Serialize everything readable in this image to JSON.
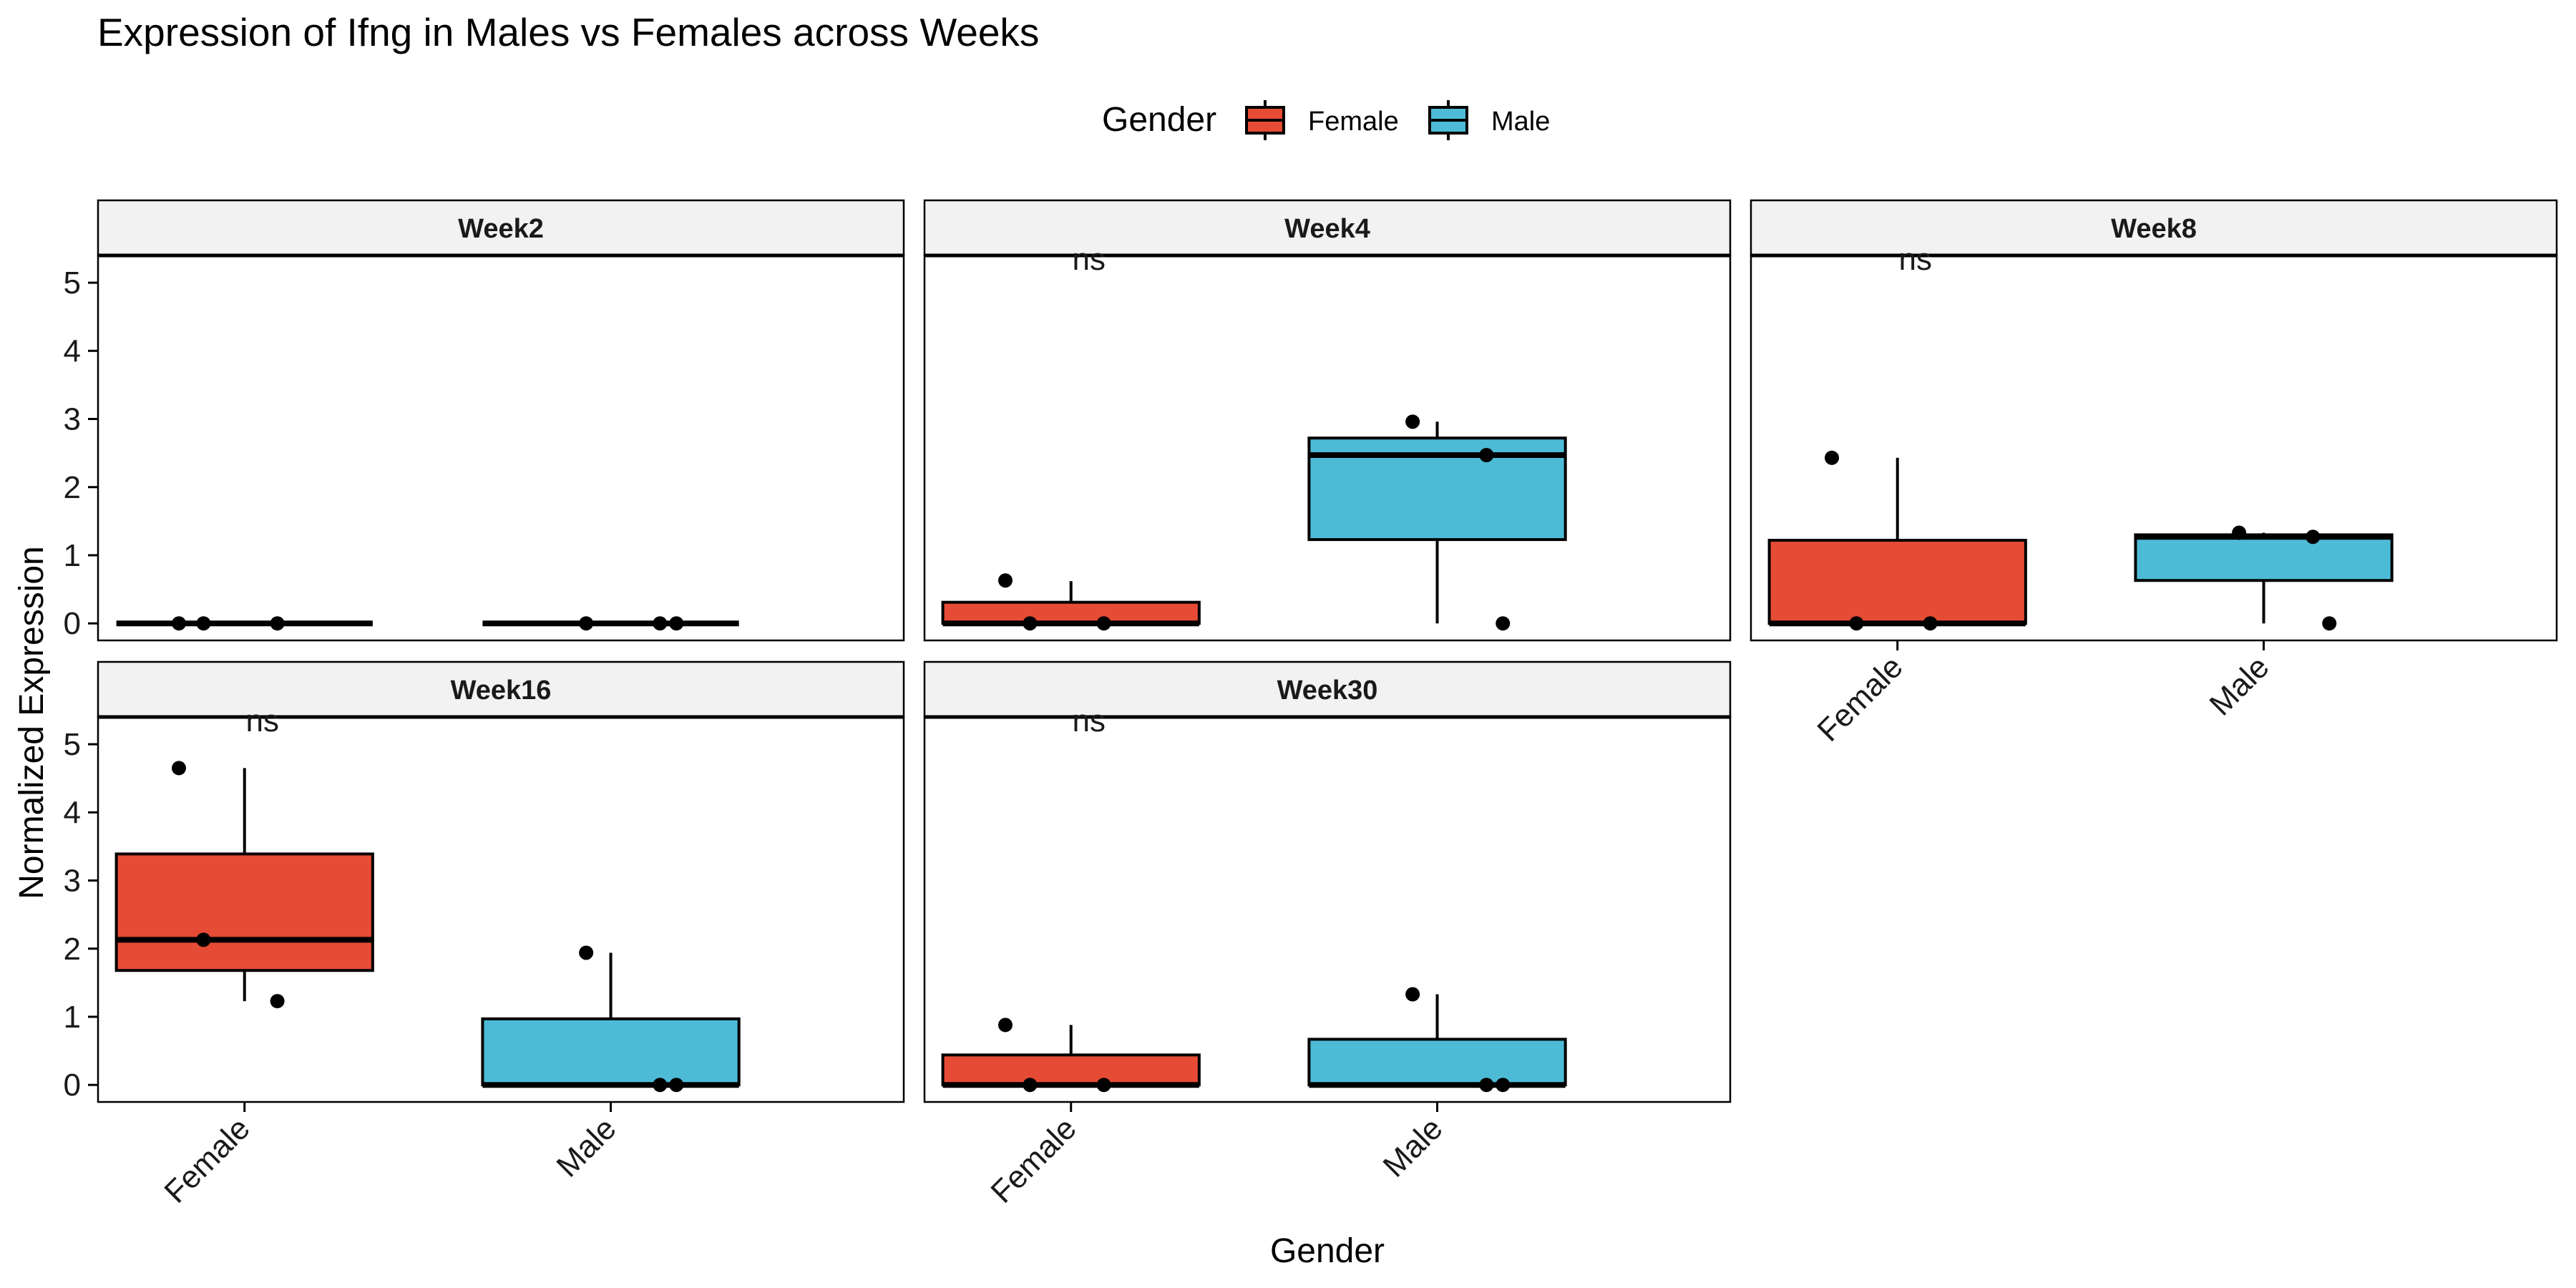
{
  "chart_data": {
    "type": "boxplot",
    "title": "Expression of Ifng in Males vs Females across Weeks",
    "xlabel": "Gender",
    "ylabel": "Normalized Expression",
    "categories": [
      "Female",
      "Male"
    ],
    "ylim": [
      -0.25,
      5.4
    ],
    "yticks": [
      0,
      1,
      2,
      3,
      4,
      5
    ],
    "grid": false,
    "legend": {
      "title": "Gender",
      "placement": "top",
      "entries": [
        {
          "label": "Female",
          "color": "#E64B35"
        },
        {
          "label": "Male",
          "color": "#4DBBD5"
        }
      ]
    },
    "facets": [
      {
        "label": "Week2",
        "annotation": "",
        "groups": [
          {
            "category": "Female",
            "min": 0,
            "q1": 0,
            "median": 0,
            "q3": 0,
            "max": 0,
            "points": [
              0,
              0,
              0
            ]
          },
          {
            "category": "Male",
            "min": 0,
            "q1": 0,
            "median": 0,
            "q3": 0,
            "max": 0,
            "points": [
              0,
              0,
              0
            ]
          }
        ]
      },
      {
        "label": "Week4",
        "annotation": "ns",
        "groups": [
          {
            "category": "Female",
            "min": 0,
            "q1": 0,
            "median": 0,
            "q3": 0.31,
            "max": 0.62,
            "points": [
              0.63,
              0,
              0
            ]
          },
          {
            "category": "Male",
            "min": 0,
            "q1": 1.23,
            "median": 2.47,
            "q3": 2.72,
            "max": 2.96,
            "points": [
              2.96,
              2.47,
              0
            ]
          }
        ]
      },
      {
        "label": "Week8",
        "annotation": "ns",
        "groups": [
          {
            "category": "Female",
            "min": 0,
            "q1": 0,
            "median": 0,
            "q3": 1.22,
            "max": 2.43,
            "points": [
              2.43,
              0,
              0
            ]
          },
          {
            "category": "Male",
            "min": 0,
            "q1": 0.63,
            "median": 1.27,
            "q3": 1.3,
            "max": 1.33,
            "points": [
              1.33,
              1.27,
              0
            ]
          }
        ]
      },
      {
        "label": "Week16",
        "annotation": "ns",
        "groups": [
          {
            "category": "Female",
            "min": 1.23,
            "q1": 1.68,
            "median": 2.13,
            "q3": 3.39,
            "max": 4.65,
            "points": [
              4.65,
              2.13,
              1.23
            ]
          },
          {
            "category": "Male",
            "min": 0,
            "q1": 0,
            "median": 0,
            "q3": 0.97,
            "max": 1.94,
            "points": [
              1.94,
              0,
              0
            ]
          }
        ]
      },
      {
        "label": "Week30",
        "annotation": "ns",
        "groups": [
          {
            "category": "Female",
            "min": 0,
            "q1": 0,
            "median": 0,
            "q3": 0.44,
            "max": 0.88,
            "points": [
              0.88,
              0,
              0
            ]
          },
          {
            "category": "Male",
            "min": 0,
            "q1": 0,
            "median": 0,
            "q3": 0.67,
            "max": 1.33,
            "points": [
              1.33,
              0,
              0
            ]
          }
        ]
      }
    ]
  }
}
